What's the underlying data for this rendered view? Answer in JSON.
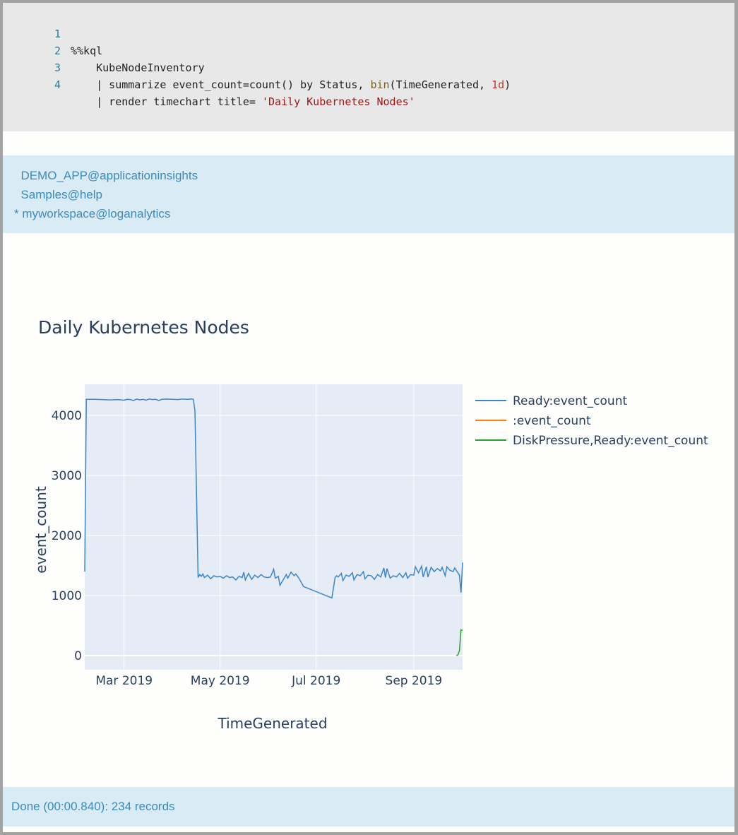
{
  "code_cell": {
    "lines": [
      {
        "number": "1",
        "text": "%%kql"
      },
      {
        "number": "2",
        "text": "    KubeNodeInventory"
      },
      {
        "number": "3",
        "pre": "    | summarize event_count=count() by Status, ",
        "fn": "bin",
        "mid": "(TimeGenerated, ",
        "num": "1d",
        "post": ")"
      },
      {
        "number": "4",
        "pre": "    | render timechart title= ",
        "str": "'Daily Kubernetes Nodes'"
      }
    ]
  },
  "connections": {
    "items": [
      "  DEMO_APP@applicationinsights",
      "  Samples@help",
      "* myworkspace@loganalytics"
    ]
  },
  "status": {
    "text": "Done (00:00.840): 234 records"
  },
  "colors": {
    "ready": "#3d85c6",
    "blank": "#ff7f0e",
    "disk": "#2ca02c",
    "plot_bg": "#e5ecf6"
  },
  "chart_data": {
    "type": "line",
    "title": "Daily Kubernetes Nodes",
    "xlabel": "TimeGenerated",
    "ylabel": "event_count",
    "xlim": [
      "2019-02-04",
      "2019-10-02"
    ],
    "ylim": [
      -235,
      4520
    ],
    "yticks": [
      0,
      1000,
      2000,
      3000,
      4000
    ],
    "xticks": [
      {
        "date": "2019-03-01",
        "label": "Mar 2019"
      },
      {
        "date": "2019-05-01",
        "label": "May 2019"
      },
      {
        "date": "2019-07-01",
        "label": "Jul 2019"
      },
      {
        "date": "2019-09-01",
        "label": "Sep 2019"
      }
    ],
    "grid": true,
    "legend_position": "right",
    "series": [
      {
        "name": "Ready:event_count",
        "color": "#3d85c6",
        "points": [
          [
            "2019-02-04",
            1400
          ],
          [
            "2019-02-05",
            4270
          ],
          [
            "2019-02-10",
            4270
          ],
          [
            "2019-02-15",
            4265
          ],
          [
            "2019-02-20",
            4260
          ],
          [
            "2019-02-25",
            4265
          ],
          [
            "2019-03-01",
            4255
          ],
          [
            "2019-03-03",
            4270
          ],
          [
            "2019-03-05",
            4265
          ],
          [
            "2019-03-07",
            4250
          ],
          [
            "2019-03-09",
            4275
          ],
          [
            "2019-03-11",
            4260
          ],
          [
            "2019-03-13",
            4270
          ],
          [
            "2019-03-15",
            4255
          ],
          [
            "2019-03-17",
            4275
          ],
          [
            "2019-03-19",
            4265
          ],
          [
            "2019-03-21",
            4270
          ],
          [
            "2019-03-23",
            4250
          ],
          [
            "2019-03-25",
            4270
          ],
          [
            "2019-03-28",
            4275
          ],
          [
            "2019-04-01",
            4270
          ],
          [
            "2019-04-04",
            4265
          ],
          [
            "2019-04-07",
            4275
          ],
          [
            "2019-04-10",
            4270
          ],
          [
            "2019-04-13",
            4275
          ],
          [
            "2019-04-14",
            4270
          ],
          [
            "2019-04-15",
            4080
          ],
          [
            "2019-04-17",
            1300
          ],
          [
            "2019-04-18",
            1350
          ],
          [
            "2019-04-19",
            1320
          ],
          [
            "2019-04-20",
            1360
          ],
          [
            "2019-04-21",
            1300
          ],
          [
            "2019-04-23",
            1340
          ],
          [
            "2019-04-25",
            1280
          ],
          [
            "2019-04-27",
            1330
          ],
          [
            "2019-04-29",
            1310
          ],
          [
            "2019-05-01",
            1320
          ],
          [
            "2019-05-03",
            1290
          ],
          [
            "2019-05-05",
            1330
          ],
          [
            "2019-05-07",
            1300
          ],
          [
            "2019-05-09",
            1310
          ],
          [
            "2019-05-11",
            1260
          ],
          [
            "2019-05-13",
            1320
          ],
          [
            "2019-05-15",
            1300
          ],
          [
            "2019-05-16",
            1390
          ],
          [
            "2019-05-17",
            1260
          ],
          [
            "2019-05-19",
            1370
          ],
          [
            "2019-05-21",
            1270
          ],
          [
            "2019-05-23",
            1340
          ],
          [
            "2019-05-25",
            1300
          ],
          [
            "2019-05-27",
            1350
          ],
          [
            "2019-05-29",
            1310
          ],
          [
            "2019-05-31",
            1300
          ],
          [
            "2019-06-02",
            1310
          ],
          [
            "2019-06-04",
            1440
          ],
          [
            "2019-06-05",
            1290
          ],
          [
            "2019-06-07",
            1320
          ],
          [
            "2019-06-08",
            1170
          ],
          [
            "2019-06-10",
            1260
          ],
          [
            "2019-06-12",
            1350
          ],
          [
            "2019-06-13",
            1290
          ],
          [
            "2019-06-15",
            1390
          ],
          [
            "2019-06-17",
            1330
          ],
          [
            "2019-06-18",
            1360
          ],
          [
            "2019-06-20",
            1290
          ],
          [
            "2019-06-23",
            1150
          ],
          [
            "2019-07-11",
            960
          ],
          [
            "2019-07-13",
            1300
          ],
          [
            "2019-07-14",
            1330
          ],
          [
            "2019-07-15",
            1310
          ],
          [
            "2019-07-17",
            1370
          ],
          [
            "2019-07-18",
            1250
          ],
          [
            "2019-07-20",
            1340
          ],
          [
            "2019-07-22",
            1320
          ],
          [
            "2019-07-24",
            1380
          ],
          [
            "2019-07-25",
            1260
          ],
          [
            "2019-07-27",
            1350
          ],
          [
            "2019-07-29",
            1330
          ],
          [
            "2019-07-31",
            1400
          ],
          [
            "2019-08-01",
            1280
          ],
          [
            "2019-08-03",
            1340
          ],
          [
            "2019-08-05",
            1330
          ],
          [
            "2019-08-07",
            1270
          ],
          [
            "2019-08-09",
            1350
          ],
          [
            "2019-08-11",
            1310
          ],
          [
            "2019-08-13",
            1460
          ],
          [
            "2019-08-14",
            1300
          ],
          [
            "2019-08-15",
            1450
          ],
          [
            "2019-08-17",
            1290
          ],
          [
            "2019-08-19",
            1330
          ],
          [
            "2019-08-21",
            1310
          ],
          [
            "2019-08-23",
            1370
          ],
          [
            "2019-08-25",
            1300
          ],
          [
            "2019-08-27",
            1380
          ],
          [
            "2019-08-28",
            1290
          ],
          [
            "2019-08-30",
            1350
          ],
          [
            "2019-09-01",
            1340
          ],
          [
            "2019-09-02",
            1480
          ],
          [
            "2019-09-04",
            1380
          ],
          [
            "2019-09-06",
            1490
          ],
          [
            "2019-09-07",
            1310
          ],
          [
            "2019-09-09",
            1480
          ],
          [
            "2019-09-10",
            1310
          ],
          [
            "2019-09-12",
            1470
          ],
          [
            "2019-09-14",
            1400
          ],
          [
            "2019-09-16",
            1450
          ],
          [
            "2019-09-18",
            1410
          ],
          [
            "2019-09-19",
            1470
          ],
          [
            "2019-09-21",
            1330
          ],
          [
            "2019-09-22",
            1480
          ],
          [
            "2019-09-24",
            1420
          ],
          [
            "2019-09-26",
            1400
          ],
          [
            "2019-09-27",
            1460
          ],
          [
            "2019-09-29",
            1380
          ],
          [
            "2019-09-30",
            1340
          ],
          [
            "2019-10-01",
            1050
          ],
          [
            "2019-10-02",
            1550
          ]
        ]
      },
      {
        "name": ":event_count",
        "color": "#ff7f0e",
        "points": []
      },
      {
        "name": "DiskPressure,Ready:event_count",
        "color": "#2ca02c",
        "points": [
          [
            "2019-09-28",
            0
          ],
          [
            "2019-09-29",
            10
          ],
          [
            "2019-09-30",
            80
          ],
          [
            "2019-10-01",
            430
          ],
          [
            "2019-10-02",
            420
          ]
        ]
      }
    ]
  }
}
